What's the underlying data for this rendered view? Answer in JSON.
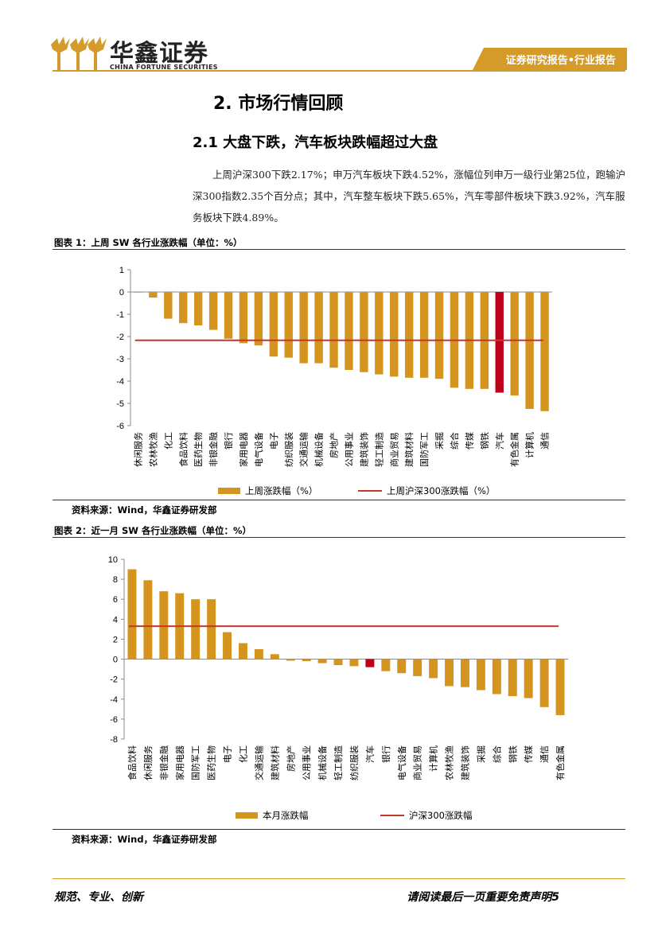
{
  "header": {
    "brand_cn": "华鑫证券",
    "brand_en": "CHINA FORTUNE SECURITIES",
    "tag": "证券研究报告•行业报告"
  },
  "section_title": "2. 市场行情回顾",
  "subsection_title": "2.1 大盘下跌，汽车板块跌幅超过大盘",
  "paragraph": "上周沪深300下跌2.17%；申万汽车板块下跌4.52%，涨幅位列申万一级行业第25位，跑输沪深300指数2.35个百分点；其中，汽车整车板块下跌5.65%，汽车零部件板块下跌3.92%，汽车服务板块下跌4.89%。",
  "figure1": {
    "title": "图表 1：上周 SW 各行业涨跌幅（单位：%）",
    "source": "资料来源：Wind，华鑫证券研发部"
  },
  "figure2": {
    "title": "图表 2：近一月 SW 各行业涨跌幅（单位：%）",
    "source": "资料来源：Wind，华鑫证券研发部"
  },
  "footer": {
    "left": "规范、专业、创新",
    "right": "请阅读最后一页重要免责声明5"
  },
  "colors": {
    "bar": "#d4941e",
    "highlight": "#c0001a",
    "line": "#c0392b",
    "accent": "#d49a2a"
  },
  "chart_data": [
    {
      "type": "bar",
      "categories": [
        "休闲服务",
        "农林牧渔",
        "化工",
        "食品饮料",
        "医药生物",
        "非银金融",
        "银行",
        "家用电器",
        "电气设备",
        "电子",
        "纺织服装",
        "交通运输",
        "机械设备",
        "房地产",
        "公用事业",
        "建筑装饰",
        "轻工制造",
        "商业贸易",
        "建筑材料",
        "国防军工",
        "采掘",
        "综合",
        "传媒",
        "钢铁",
        "汽车",
        "有色金属",
        "计算机",
        "通信"
      ],
      "series": [
        {
          "name": "上周涨跌幅（%）",
          "type": "bar",
          "values": [
            0.0,
            -0.25,
            -1.2,
            -1.4,
            -1.5,
            -1.7,
            -2.1,
            -2.3,
            -2.4,
            -2.9,
            -2.95,
            -3.2,
            -3.2,
            -3.4,
            -3.5,
            -3.6,
            -3.7,
            -3.8,
            -3.85,
            -3.85,
            -3.9,
            -4.3,
            -4.35,
            -4.35,
            -4.52,
            -4.65,
            -5.25,
            -5.35
          ]
        },
        {
          "name": "上周沪深300涨跌幅（%）",
          "type": "line",
          "value": -2.17
        }
      ],
      "highlight": "汽车",
      "ylim": [
        -6,
        1
      ],
      "yticks": [
        1,
        0,
        -1,
        -2,
        -3,
        -4,
        -5,
        -6
      ],
      "legend": "bottom"
    },
    {
      "type": "bar",
      "categories": [
        "食品饮料",
        "休闲服务",
        "非银金融",
        "家用电器",
        "国防军工",
        "医药生物",
        "电子",
        "化工",
        "交通运输",
        "建筑材料",
        "房地产",
        "公用事业",
        "机械设备",
        "轻工制造",
        "纺织服装",
        "汽车",
        "银行",
        "电气设备",
        "商业贸易",
        "计算机",
        "农林牧渔",
        "建筑装饰",
        "采掘",
        "综合",
        "钢铁",
        "传媒",
        "通信",
        "有色金属"
      ],
      "series": [
        {
          "name": "本月涨跌幅",
          "type": "bar",
          "values": [
            9.0,
            7.9,
            6.8,
            6.6,
            6.0,
            6.0,
            2.7,
            1.6,
            1.0,
            0.5,
            -0.15,
            -0.2,
            -0.4,
            -0.6,
            -0.7,
            -0.8,
            -1.2,
            -1.4,
            -1.7,
            -1.9,
            -2.7,
            -2.8,
            -3.1,
            -3.5,
            -3.7,
            -3.9,
            -4.8,
            -5.6
          ]
        },
        {
          "name": "沪深300涨跌幅",
          "type": "line",
          "value": 3.3
        }
      ],
      "highlight": "汽车",
      "ylim": [
        -8,
        10
      ],
      "yticks": [
        10,
        8,
        6,
        4,
        2,
        0,
        -2,
        -4,
        -6,
        -8
      ],
      "legend": "bottom"
    }
  ]
}
